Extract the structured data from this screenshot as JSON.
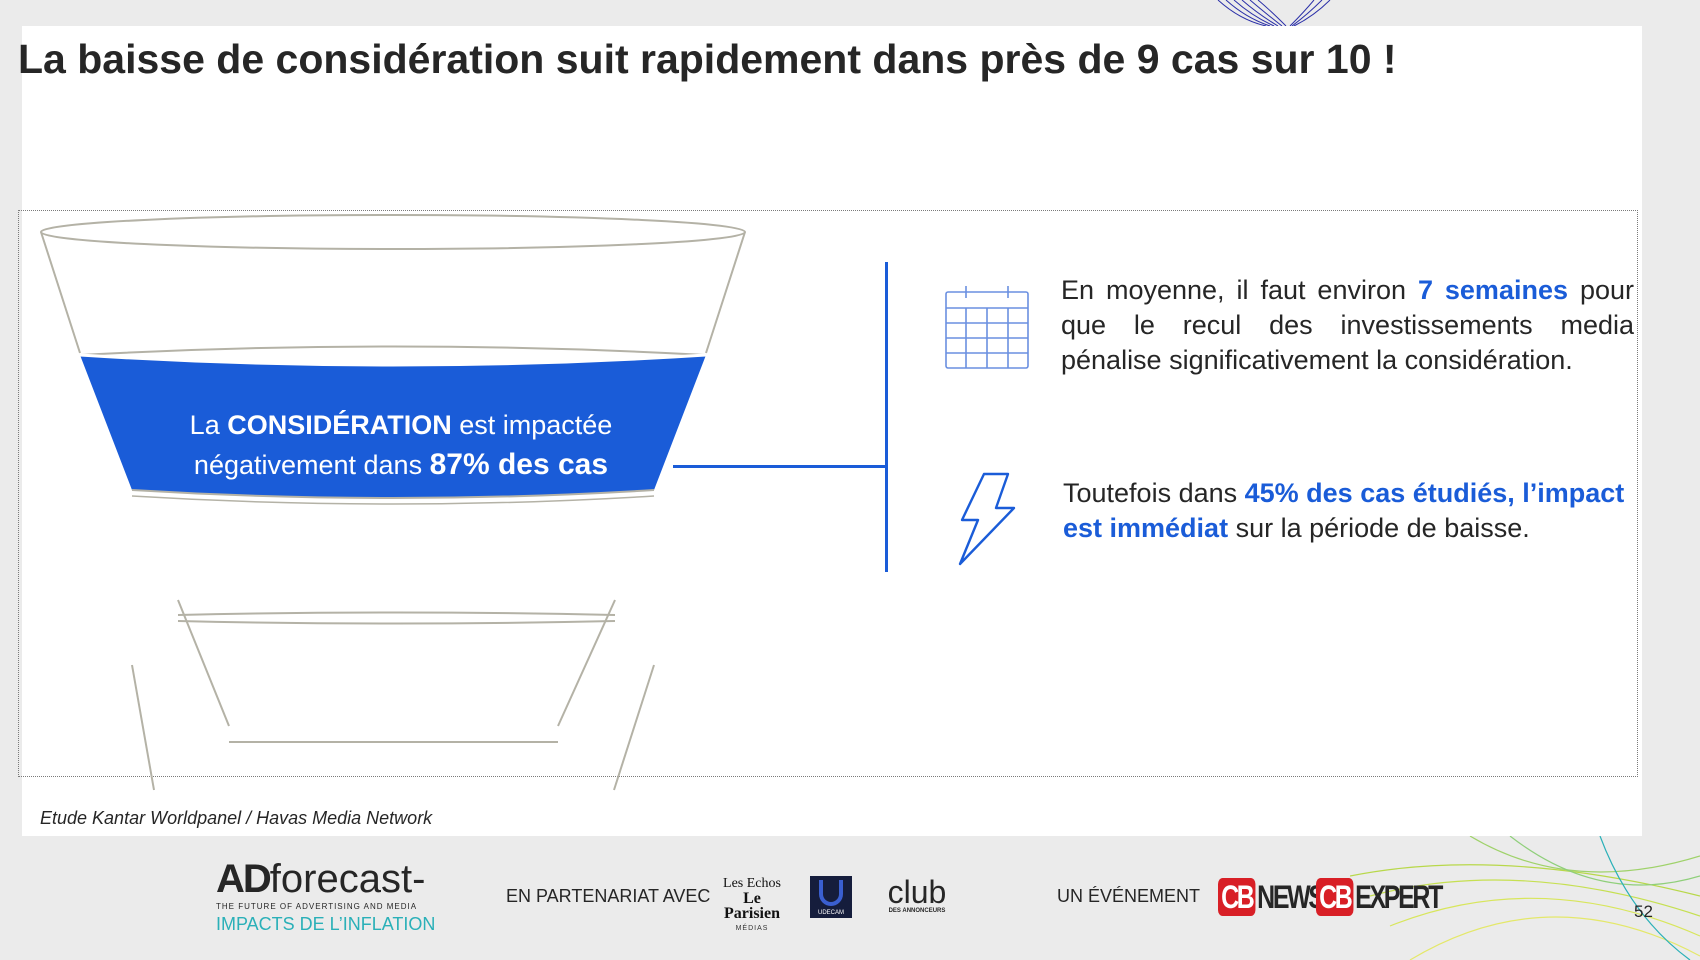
{
  "slide": {
    "title": "La baisse de considération suit rapidement dans près de 9 cas sur 10 !",
    "source": "Etude Kantar Worldpanel / Havas Media Network",
    "page_number": "52"
  },
  "funnel": {
    "highlight_color": "#1a5cd8",
    "line1_pre": "La ",
    "line1_strong": "CONSIDÉRATION",
    "line1_post": " est impactée",
    "line2_pre": "négativement dans ",
    "line2_strong": "87% des cas"
  },
  "points": [
    {
      "icon": "calendar-icon",
      "text_pre": "En moyenne, il faut environ ",
      "highlight": "7 semaines",
      "text_post": " pour que le recul des investissements media pénalise significativement la considération."
    },
    {
      "icon": "lightning-bolt-icon",
      "text_pre": "Toutefois dans ",
      "highlight": "45% des cas étudiés, l’impact est immédiat",
      "text_post": " sur la période de baisse."
    }
  ],
  "footer": {
    "brand_ad": "AD",
    "brand_forecast": "forecast-",
    "brand_tagline": "THE FUTURE OF ADVERTISING AND MEDIA",
    "brand_subtitle": "IMPACTS DE L’INFLATION",
    "partner_label": "EN PARTENARIAT AVEC",
    "partner_echos_line1": "Les Echos",
    "partner_echos_line2": "Le Parisien",
    "partner_echos_line3": "MÉDIAS",
    "partner_udecam": "UDECAM",
    "partner_club": "club",
    "partner_club_sub": "DES ANNONCEURS",
    "event_label": "UN ÉVÉNEMENT",
    "cb_mark": "CB",
    "cb_news": "NEWS",
    "cb_expert": "EXPERT"
  }
}
